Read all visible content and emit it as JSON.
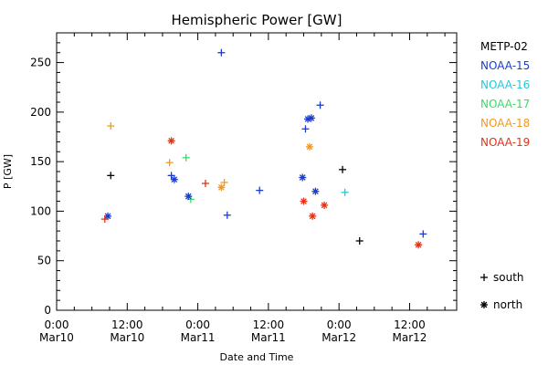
{
  "chart_data": {
    "type": "scatter",
    "title": "Hemispheric Power [GW]",
    "xlabel": "Date and Time",
    "ylabel": "P [GW]",
    "ylim": [
      0,
      280
    ],
    "yticks": [
      0,
      50,
      100,
      150,
      200,
      250
    ],
    "xlim": [
      0,
      68
    ],
    "xticks": [
      {
        "hour": 0,
        "line1": "0:00",
        "line2": "Mar10"
      },
      {
        "hour": 12,
        "line1": "12:00",
        "line2": "Mar10"
      },
      {
        "hour": 24,
        "line1": "0:00",
        "line2": "Mar11"
      },
      {
        "hour": 36,
        "line1": "12:00",
        "line2": "Mar11"
      },
      {
        "hour": 48,
        "line1": "0:00",
        "line2": "Mar12"
      },
      {
        "hour": 60,
        "line1": "12:00",
        "line2": "Mar12"
      }
    ],
    "legend_placement": "right",
    "marker_legend": [
      {
        "symbol": "+",
        "label": "south"
      },
      {
        "symbol": "*",
        "label": "north"
      }
    ],
    "series": [
      {
        "name": "METP-02",
        "color": "#000000"
      },
      {
        "name": "NOAA-15",
        "color": "#1a3ccc"
      },
      {
        "name": "NOAA-16",
        "color": "#22c8dd"
      },
      {
        "name": "NOAA-17",
        "color": "#33dd66"
      },
      {
        "name": "NOAA-18",
        "color": "#f09a22"
      },
      {
        "name": "NOAA-19",
        "color": "#e03318"
      }
    ],
    "highlight_points": [
      {
        "series": "NOAA-15",
        "hour": 28.0,
        "value": 260,
        "marker": "+"
      },
      {
        "series": "NOAA-15",
        "hour": 44.8,
        "value": 207,
        "marker": "+"
      },
      {
        "series": "NOAA-15",
        "hour": 43.3,
        "value": 194,
        "marker": "*"
      },
      {
        "series": "NOAA-15",
        "hour": 42.7,
        "value": 193,
        "marker": "*"
      },
      {
        "series": "NOAA-15",
        "hour": 42.3,
        "value": 183,
        "marker": "+"
      },
      {
        "series": "NOAA-18",
        "hour": 9.2,
        "value": 186,
        "marker": "+"
      },
      {
        "series": "NOAA-19",
        "hour": 19.5,
        "value": 171,
        "marker": "*"
      },
      {
        "series": "NOAA-18",
        "hour": 43.0,
        "value": 165,
        "marker": "*"
      },
      {
        "series": "NOAA-17",
        "hour": 22.0,
        "value": 154,
        "marker": "+"
      },
      {
        "series": "NOAA-18",
        "hour": 19.2,
        "value": 149,
        "marker": "+"
      },
      {
        "series": "METP-02",
        "hour": 48.6,
        "value": 142,
        "marker": "+"
      },
      {
        "series": "METP-02",
        "hour": 9.2,
        "value": 136,
        "marker": "+"
      },
      {
        "series": "NOAA-15",
        "hour": 19.5,
        "value": 136,
        "marker": "+"
      },
      {
        "series": "NOAA-15",
        "hour": 20.0,
        "value": 132,
        "marker": "*"
      },
      {
        "series": "NOAA-15",
        "hour": 41.8,
        "value": 134,
        "marker": "*"
      },
      {
        "series": "NOAA-18",
        "hour": 28.5,
        "value": 129,
        "marker": "+"
      },
      {
        "series": "NOAA-18",
        "hour": 28.0,
        "value": 124,
        "marker": "*"
      },
      {
        "series": "NOAA-19",
        "hour": 25.3,
        "value": 128,
        "marker": "+"
      },
      {
        "series": "NOAA-15",
        "hour": 34.5,
        "value": 121,
        "marker": "+"
      },
      {
        "series": "NOAA-16",
        "hour": 49.0,
        "value": 119,
        "marker": "+"
      },
      {
        "series": "NOAA-15",
        "hour": 44.0,
        "value": 120,
        "marker": "*"
      },
      {
        "series": "NOAA-17",
        "hour": 22.8,
        "value": 112,
        "marker": "+"
      },
      {
        "series": "NOAA-19",
        "hour": 42.0,
        "value": 110,
        "marker": "*"
      },
      {
        "series": "NOAA-15",
        "hour": 22.4,
        "value": 115,
        "marker": "*"
      },
      {
        "series": "NOAA-19",
        "hour": 45.5,
        "value": 106,
        "marker": "*"
      },
      {
        "series": "NOAA-15",
        "hour": 8.7,
        "value": 95,
        "marker": "*"
      },
      {
        "series": "NOAA-19",
        "hour": 8.2,
        "value": 92,
        "marker": "+"
      },
      {
        "series": "NOAA-19",
        "hour": 43.5,
        "value": 95,
        "marker": "*"
      },
      {
        "series": "NOAA-15",
        "hour": 29.0,
        "value": 96,
        "marker": "+"
      },
      {
        "series": "NOAA-15",
        "hour": 62.3,
        "value": 77,
        "marker": "+"
      },
      {
        "series": "NOAA-19",
        "hour": 61.5,
        "value": 66,
        "marker": "*"
      },
      {
        "series": "METP-02",
        "hour": 51.5,
        "value": 70,
        "marker": "+"
      }
    ]
  }
}
